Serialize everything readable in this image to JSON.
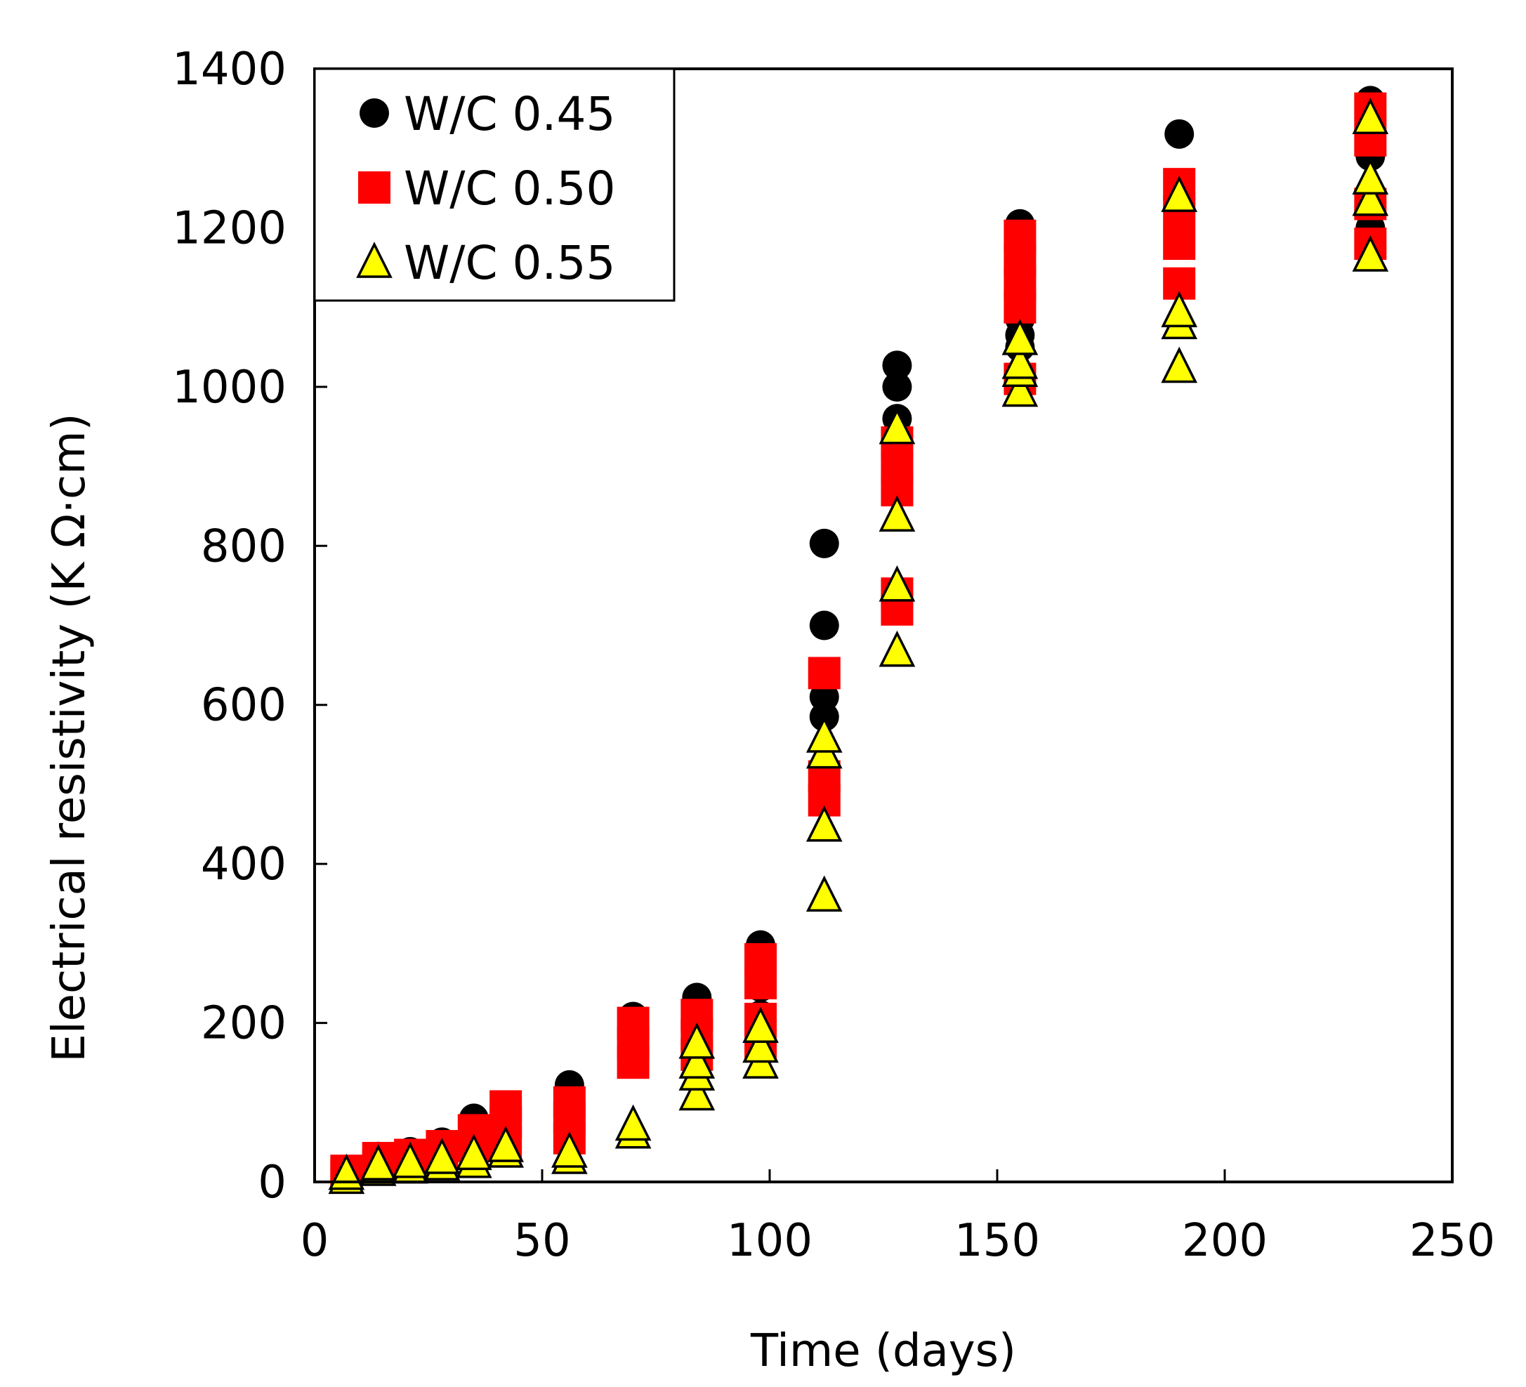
{
  "chart_data": {
    "type": "scatter",
    "title": "",
    "xlabel": "Time (days)",
    "ylabel": "Electrical resistivity (K Ω·cm)",
    "xlim": [
      0,
      250
    ],
    "ylim": [
      0,
      1400
    ],
    "xticks": [
      0,
      50,
      100,
      150,
      200,
      250
    ],
    "yticks": [
      0,
      200,
      400,
      600,
      800,
      1000,
      1200,
      1400
    ],
    "grid": false,
    "legend_position": "top-left",
    "series": [
      {
        "name": "W/C 0.45",
        "marker": "circle",
        "color": "#000000",
        "points": [
          [
            7,
            8
          ],
          [
            7,
            13
          ],
          [
            14,
            25
          ],
          [
            14,
            32
          ],
          [
            21,
            30
          ],
          [
            21,
            38
          ],
          [
            28,
            40
          ],
          [
            28,
            50
          ],
          [
            35,
            55
          ],
          [
            35,
            80
          ],
          [
            42,
            70
          ],
          [
            42,
            92
          ],
          [
            56,
            60
          ],
          [
            56,
            100
          ],
          [
            56,
            122
          ],
          [
            70,
            150
          ],
          [
            70,
            208
          ],
          [
            84,
            170
          ],
          [
            84,
            200
          ],
          [
            84,
            232
          ],
          [
            98,
            210
          ],
          [
            98,
            245
          ],
          [
            98,
            298
          ],
          [
            112,
            585
          ],
          [
            112,
            610
          ],
          [
            112,
            700
          ],
          [
            112,
            803
          ],
          [
            128,
            900
          ],
          [
            128,
            960
          ],
          [
            128,
            1000
          ],
          [
            128,
            1027
          ],
          [
            155,
            1050
          ],
          [
            155,
            1065
          ],
          [
            155,
            1085
          ],
          [
            155,
            1205
          ],
          [
            190,
            1210
          ],
          [
            190,
            1250
          ],
          [
            190,
            1318
          ],
          [
            232,
            1200
          ],
          [
            232,
            1290
          ],
          [
            232,
            1360
          ]
        ]
      },
      {
        "name": "W/C 0.50",
        "marker": "square",
        "color": "#ff0000",
        "points": [
          [
            7,
            8
          ],
          [
            7,
            14
          ],
          [
            14,
            20
          ],
          [
            14,
            30
          ],
          [
            21,
            22
          ],
          [
            21,
            34
          ],
          [
            28,
            30
          ],
          [
            28,
            45
          ],
          [
            35,
            45
          ],
          [
            35,
            65
          ],
          [
            42,
            50
          ],
          [
            42,
            75
          ],
          [
            42,
            95
          ],
          [
            56,
            55
          ],
          [
            56,
            80
          ],
          [
            56,
            100
          ],
          [
            70,
            150
          ],
          [
            70,
            175
          ],
          [
            70,
            200
          ],
          [
            84,
            160
          ],
          [
            84,
            185
          ],
          [
            84,
            210
          ],
          [
            98,
            175
          ],
          [
            98,
            205
          ],
          [
            98,
            250
          ],
          [
            98,
            280
          ],
          [
            112,
            480
          ],
          [
            112,
            510
          ],
          [
            112,
            640
          ],
          [
            128,
            720
          ],
          [
            128,
            740
          ],
          [
            128,
            870
          ],
          [
            128,
            900
          ],
          [
            128,
            930
          ],
          [
            155,
            1010
          ],
          [
            155,
            1100
          ],
          [
            155,
            1130
          ],
          [
            155,
            1160
          ],
          [
            155,
            1190
          ],
          [
            190,
            1130
          ],
          [
            190,
            1180
          ],
          [
            190,
            1220
          ],
          [
            190,
            1255
          ],
          [
            232,
            1180
          ],
          [
            232,
            1230
          ],
          [
            232,
            1310
          ],
          [
            232,
            1350
          ]
        ]
      },
      {
        "name": "W/C 0.55",
        "marker": "triangle",
        "color": "#ffff00",
        "points": [
          [
            7,
            5
          ],
          [
            7,
            10
          ],
          [
            14,
            15
          ],
          [
            14,
            22
          ],
          [
            21,
            18
          ],
          [
            21,
            25
          ],
          [
            28,
            22
          ],
          [
            28,
            30
          ],
          [
            35,
            25
          ],
          [
            35,
            35
          ],
          [
            42,
            38
          ],
          [
            42,
            45
          ],
          [
            56,
            30
          ],
          [
            56,
            38
          ],
          [
            70,
            62
          ],
          [
            70,
            72
          ],
          [
            84,
            110
          ],
          [
            84,
            135
          ],
          [
            84,
            150
          ],
          [
            84,
            175
          ],
          [
            98,
            150
          ],
          [
            98,
            170
          ],
          [
            98,
            195
          ],
          [
            112,
            360
          ],
          [
            112,
            448
          ],
          [
            112,
            540
          ],
          [
            112,
            560
          ],
          [
            128,
            668
          ],
          [
            128,
            750
          ],
          [
            128,
            838
          ],
          [
            128,
            948
          ],
          [
            155,
            995
          ],
          [
            155,
            1020
          ],
          [
            155,
            1030
          ],
          [
            155,
            1060
          ],
          [
            190,
            1025
          ],
          [
            190,
            1080
          ],
          [
            190,
            1095
          ],
          [
            190,
            1240
          ],
          [
            232,
            1165
          ],
          [
            232,
            1235
          ],
          [
            232,
            1262
          ],
          [
            232,
            1338
          ]
        ]
      }
    ]
  }
}
